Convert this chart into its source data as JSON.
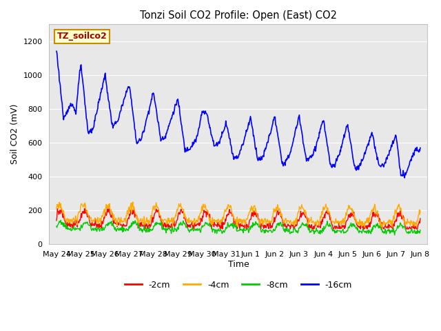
{
  "title": "Tonzi Soil CO2 Profile: Open (East) CO2",
  "ylabel": "Soil CO2 (mV)",
  "xlabel": "Time",
  "ylim": [
    0,
    1300
  ],
  "yticks": [
    0,
    200,
    400,
    600,
    800,
    1000,
    1200
  ],
  "bg_color": "#e8e8e8",
  "fig_bg": "#ffffff",
  "legend_labels": [
    "-2cm",
    "-4cm",
    "-8cm",
    "-16cm"
  ],
  "legend_colors": [
    "#ff0000",
    "#ffaa00",
    "#00cc00",
    "#0000ff"
  ],
  "annotation_text": "TZ_soilco2",
  "annotation_text_color": "#aa0000",
  "annotation_bg": "#ffffcc",
  "annotation_border": "#cc8800",
  "x_tick_labels": [
    "May 24",
    "May 25",
    "May 26",
    "May 27",
    "May 28",
    "May 29",
    "May 30",
    "May 31",
    "Jun 1",
    "Jun 2",
    "Jun 3",
    "Jun 4",
    "Jun 5",
    "Jun 6",
    "Jun 7",
    "Jun 8"
  ],
  "x_tick_positions": [
    0,
    1,
    2,
    3,
    4,
    5,
    6,
    7,
    8,
    9,
    10,
    11,
    12,
    13,
    14,
    15
  ],
  "grid_color": "#ffffff",
  "spine_color": "#aaaaaa"
}
